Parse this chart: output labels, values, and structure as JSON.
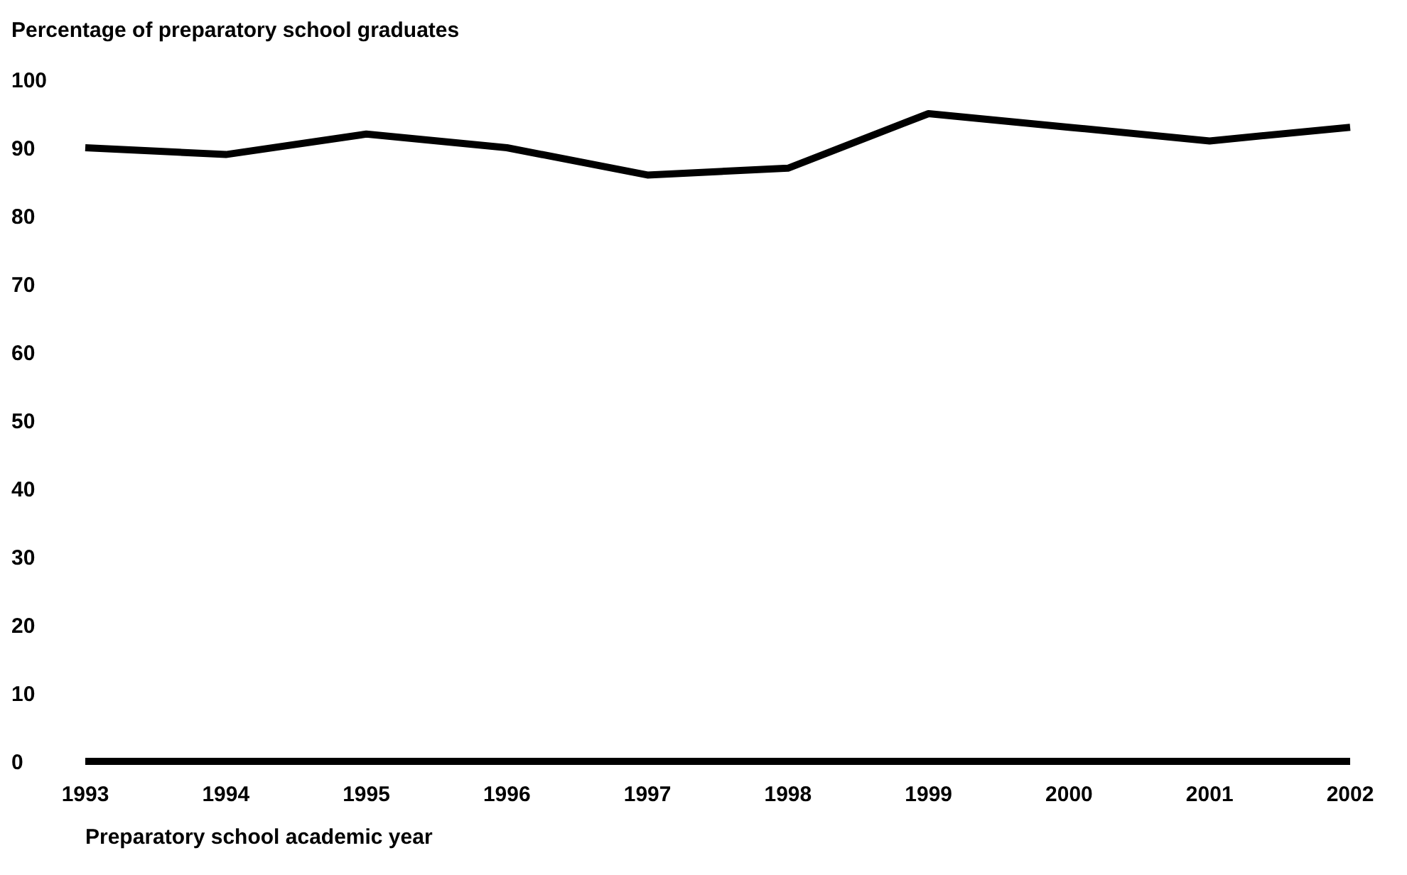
{
  "chart_data": {
    "type": "line",
    "ylabel": "Percentage of preparatory school graduates",
    "xlabel": "Preparatory school academic year",
    "categories": [
      "1993",
      "1994",
      "1995",
      "1996",
      "1997",
      "1998",
      "1999",
      "2000",
      "2001",
      "2002"
    ],
    "series": [
      {
        "color": "#000000",
        "values": [
          90,
          89,
          92,
          90,
          86,
          87,
          95,
          93,
          91,
          93
        ]
      }
    ],
    "ylim": [
      0,
      100
    ],
    "yticks": [
      0,
      10,
      20,
      30,
      40,
      50,
      60,
      70,
      80,
      90,
      100
    ],
    "marker": "none",
    "line_style": "solid"
  }
}
